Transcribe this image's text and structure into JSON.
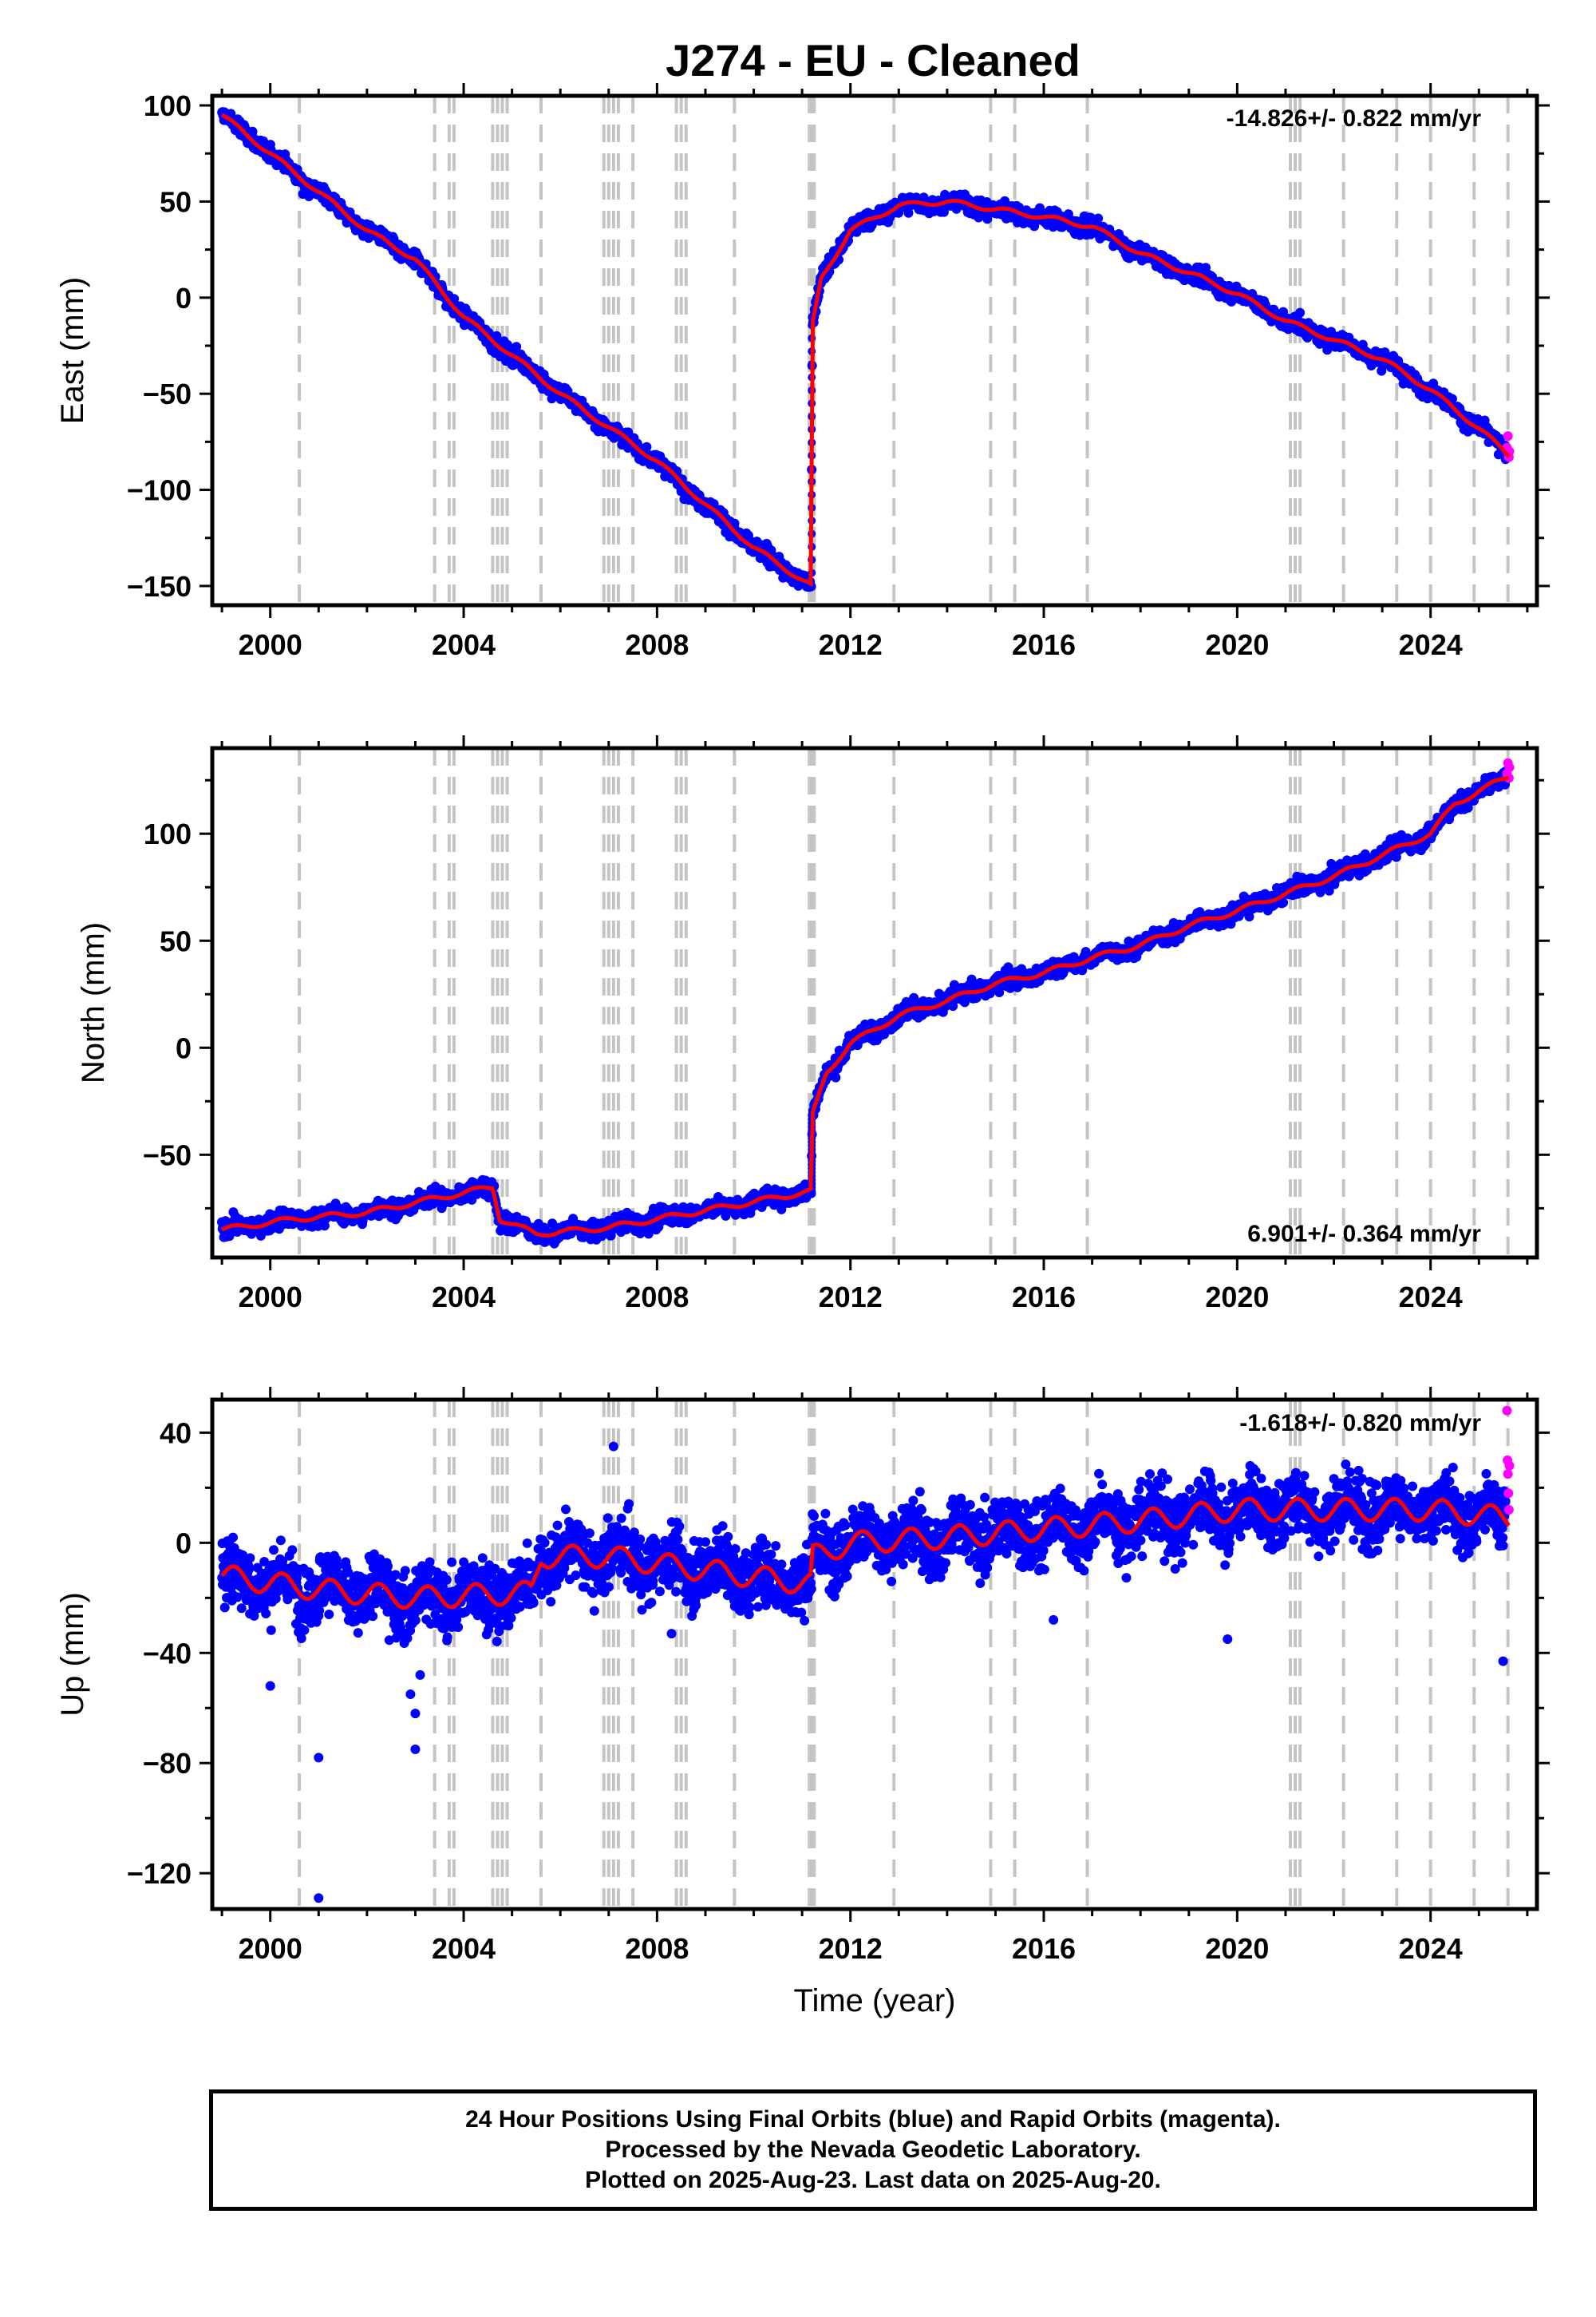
{
  "chart_data": [
    {
      "type": "scatter",
      "panel": "east",
      "title": "J274  - EU - Cleaned",
      "xlabel": "",
      "ylabel": "East (mm)",
      "xlim": [
        1998.8,
        2026.2
      ],
      "ylim": [
        -160,
        105
      ],
      "xticks": [
        2000,
        2004,
        2008,
        2012,
        2016,
        2020,
        2024
      ],
      "xtick_labels": [
        "2000",
        "2004",
        "2008",
        "2012",
        "2016",
        "2020",
        "2024"
      ],
      "yticks": [
        -150,
        -100,
        -50,
        0,
        50,
        100
      ],
      "ytick_labels": [
        "−150",
        "−100",
        "−50",
        "0",
        "50",
        "100"
      ],
      "rate_label": "-14.826+/- 0.822 mm/yr",
      "steps": [
        2000.6,
        2003.4,
        2003.7,
        2003.8,
        2004.6,
        2004.7,
        2004.8,
        2004.9,
        2005.6,
        2006.9,
        2007.0,
        2007.1,
        2007.2,
        2007.5,
        2008.4,
        2008.5,
        2008.6,
        2009.6,
        2011.15,
        2011.2,
        2011.25,
        2012.9,
        2014.9,
        2015.4,
        2016.9,
        2021.1,
        2021.2,
        2021.3,
        2022.2,
        2023.3,
        2024.0,
        2024.9,
        2025.6
      ],
      "anchors": [
        [
          1999.0,
          95
        ],
        [
          2000.5,
          65
        ],
        [
          2002.0,
          35
        ],
        [
          2003.0,
          20
        ],
        [
          2004.0,
          -10
        ],
        [
          2006.0,
          -50
        ],
        [
          2008.0,
          -85
        ],
        [
          2010.0,
          -130
        ],
        [
          2011.19,
          -150
        ],
        [
          2011.21,
          -15
        ],
        [
          2011.4,
          10
        ],
        [
          2012.0,
          35
        ],
        [
          2013.0,
          48
        ],
        [
          2014.0,
          50
        ],
        [
          2015.0,
          46
        ],
        [
          2016.0,
          42
        ],
        [
          2017.0,
          37
        ],
        [
          2018.0,
          23
        ],
        [
          2019.0,
          13
        ],
        [
          2020.0,
          2
        ],
        [
          2021.0,
          -12
        ],
        [
          2022.0,
          -22
        ],
        [
          2023.0,
          -32
        ],
        [
          2024.0,
          -48
        ],
        [
          2025.0,
          -68
        ],
        [
          2025.62,
          -82
        ]
      ],
      "noise": 3.0,
      "series": [
        {
          "name": "Final Orbits",
          "color": "#0000ff"
        },
        {
          "name": "Rapid Orbits",
          "color": "#ff00ff"
        },
        {
          "name": "",
          "color": "#ff0000"
        }
      ],
      "rapid_points": [
        [
          2025.58,
          -78
        ],
        [
          2025.6,
          -72
        ],
        [
          2025.62,
          -83
        ],
        [
          2025.63,
          -80
        ]
      ],
      "outliers": []
    },
    {
      "type": "scatter",
      "panel": "north",
      "xlabel": "",
      "ylabel": "North (mm)",
      "xlim": [
        1998.8,
        2026.2
      ],
      "ylim": [
        -98,
        140
      ],
      "xticks": [
        2000,
        2004,
        2008,
        2012,
        2016,
        2020,
        2024
      ],
      "xtick_labels": [
        "2000",
        "2004",
        "2008",
        "2012",
        "2016",
        "2020",
        "2024"
      ],
      "yticks": [
        -50,
        0,
        50,
        100
      ],
      "ytick_labels": [
        "−50",
        "0",
        "50",
        "100"
      ],
      "rate_label": "6.901+/- 0.364 mm/yr",
      "steps": [
        2000.6,
        2003.4,
        2003.7,
        2003.8,
        2004.6,
        2004.7,
        2004.8,
        2004.9,
        2005.6,
        2006.9,
        2007.0,
        2007.1,
        2007.2,
        2007.5,
        2008.4,
        2008.5,
        2008.6,
        2009.6,
        2011.15,
        2011.2,
        2011.25,
        2012.9,
        2014.9,
        2015.4,
        2016.9,
        2021.1,
        2021.2,
        2021.3,
        2022.2,
        2023.3,
        2024.0,
        2024.9,
        2025.6
      ],
      "anchors": [
        [
          1999.0,
          -85
        ],
        [
          2000.5,
          -80
        ],
        [
          2002.0,
          -77
        ],
        [
          2003.5,
          -70
        ],
        [
          2004.6,
          -65
        ],
        [
          2004.75,
          -80
        ],
        [
          2005.5,
          -87
        ],
        [
          2007.0,
          -84
        ],
        [
          2008.5,
          -78
        ],
        [
          2010.0,
          -72
        ],
        [
          2011.19,
          -67
        ],
        [
          2011.21,
          -32
        ],
        [
          2011.5,
          -12
        ],
        [
          2012.0,
          2
        ],
        [
          2013.0,
          15
        ],
        [
          2014.0,
          22
        ],
        [
          2015.0,
          30
        ],
        [
          2016.0,
          35
        ],
        [
          2017.0,
          42
        ],
        [
          2018.0,
          48
        ],
        [
          2019.0,
          57
        ],
        [
          2020.0,
          64
        ],
        [
          2021.0,
          72
        ],
        [
          2022.0,
          80
        ],
        [
          2023.0,
          90
        ],
        [
          2024.0,
          100
        ],
        [
          2024.5,
          114
        ],
        [
          2025.62,
          127
        ]
      ],
      "noise": 2.8,
      "series": [
        {
          "name": "Final Orbits",
          "color": "#0000ff"
        },
        {
          "name": "Rapid Orbits",
          "color": "#ff00ff"
        },
        {
          "name": "",
          "color": "#ff0000"
        }
      ],
      "rapid_points": [
        [
          2025.58,
          128
        ],
        [
          2025.6,
          133
        ],
        [
          2025.62,
          126
        ],
        [
          2025.63,
          131
        ]
      ],
      "outliers": []
    },
    {
      "type": "scatter",
      "panel": "up",
      "xlabel": "Time (year)",
      "ylabel": "Up (mm)",
      "xlim": [
        1998.8,
        2026.2
      ],
      "ylim": [
        -133,
        52
      ],
      "xticks": [
        2000,
        2004,
        2008,
        2012,
        2016,
        2020,
        2024
      ],
      "xtick_labels": [
        "2000",
        "2004",
        "2008",
        "2012",
        "2016",
        "2020",
        "2024"
      ],
      "yticks": [
        -120,
        -80,
        -40,
        0,
        40
      ],
      "ytick_labels": [
        "−120",
        "−80",
        "−40",
        "0",
        "40"
      ],
      "rate_label": "-1.618+/- 0.820 mm/yr",
      "steps": [
        2000.6,
        2003.4,
        2003.7,
        2003.8,
        2004.6,
        2004.7,
        2004.8,
        2004.9,
        2005.6,
        2006.9,
        2007.0,
        2007.1,
        2007.2,
        2007.5,
        2008.4,
        2008.5,
        2008.6,
        2009.6,
        2011.15,
        2011.2,
        2011.25,
        2012.9,
        2014.9,
        2015.4,
        2016.9,
        2021.1,
        2021.2,
        2021.3,
        2022.2,
        2023.3,
        2024.0,
        2024.9,
        2025.6
      ],
      "anchors": [
        [
          1999.0,
          -12
        ],
        [
          2001.0,
          -17
        ],
        [
          2003.0,
          -20
        ],
        [
          2005.4,
          -18
        ],
        [
          2005.6,
          -5
        ],
        [
          2007.0,
          -5
        ],
        [
          2009.0,
          -10
        ],
        [
          2011.19,
          -15
        ],
        [
          2011.21,
          -5
        ],
        [
          2012.0,
          0
        ],
        [
          2014.0,
          2
        ],
        [
          2016.0,
          5
        ],
        [
          2018.0,
          8
        ],
        [
          2020.0,
          12
        ],
        [
          2022.0,
          12
        ],
        [
          2024.0,
          12
        ],
        [
          2025.62,
          9
        ]
      ],
      "noise": 8.0,
      "series": [
        {
          "name": "Final Orbits",
          "color": "#0000ff"
        },
        {
          "name": "Rapid Orbits",
          "color": "#ff00ff"
        },
        {
          "name": "",
          "color": "#ff0000"
        }
      ],
      "rapid_points": [
        [
          2025.58,
          48
        ],
        [
          2025.59,
          30
        ],
        [
          2025.6,
          25
        ],
        [
          2025.61,
          18
        ],
        [
          2025.62,
          12
        ],
        [
          2025.63,
          28
        ]
      ],
      "outliers": [
        [
          2001.0,
          -129
        ],
        [
          2001.0,
          -78
        ],
        [
          2003.0,
          -75
        ],
        [
          2003.0,
          -62
        ],
        [
          2002.9,
          -55
        ],
        [
          2003.1,
          -48
        ],
        [
          2000.0,
          -52
        ],
        [
          2007.1,
          35
        ],
        [
          2019.8,
          -35
        ],
        [
          2025.5,
          -43
        ],
        [
          2008.3,
          -33
        ],
        [
          2016.2,
          -28
        ]
      ]
    }
  ],
  "footer": {
    "line1": "24 Hour Positions Using Final Orbits (blue) and Rapid Orbits (magenta).",
    "line2": "Processed by the Nevada Geodetic Laboratory.",
    "line3": "Plotted on 2025-Aug-23. Last data on 2025-Aug-20."
  }
}
